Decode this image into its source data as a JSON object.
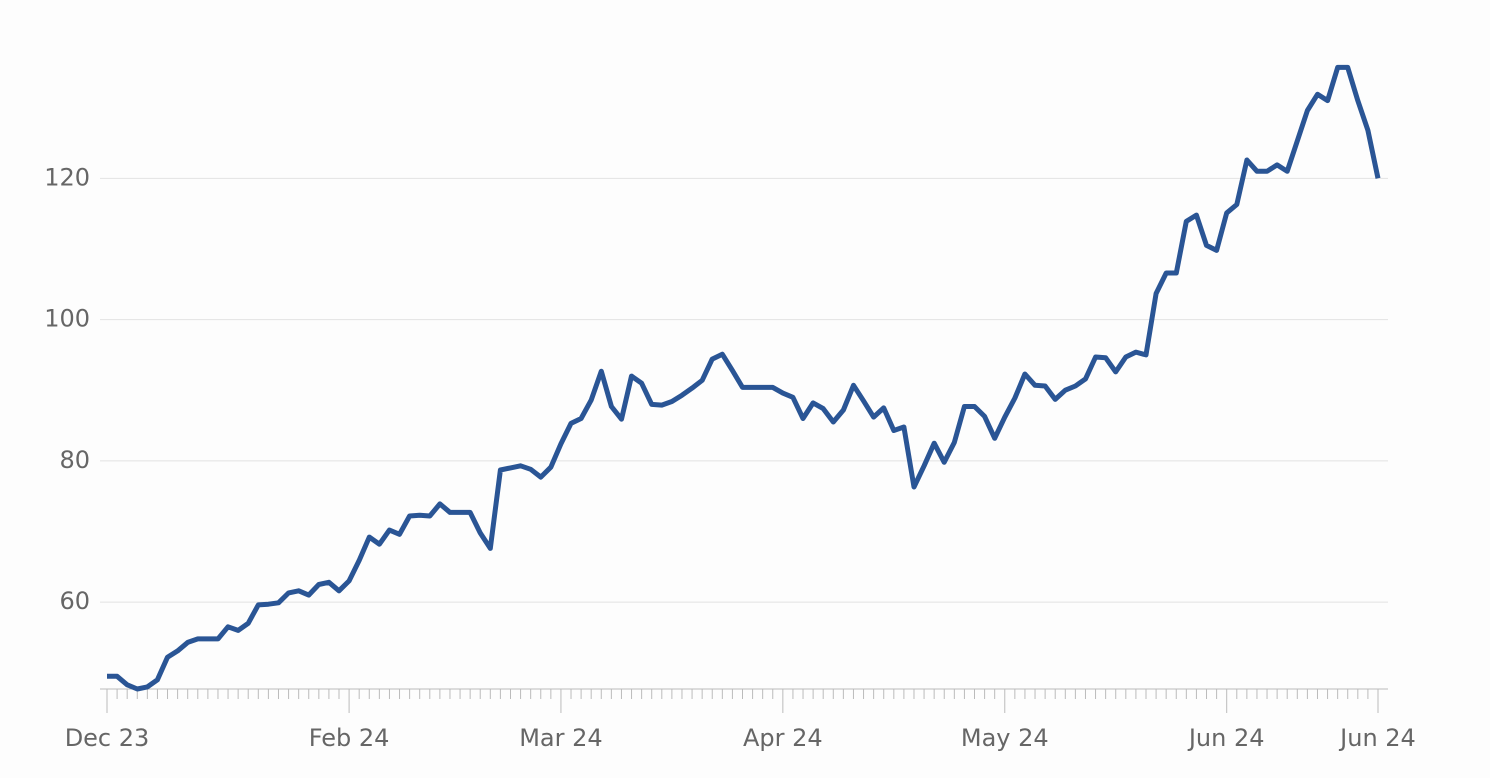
{
  "chart_data": {
    "type": "line",
    "categories": [
      "Dec 23",
      null,
      null,
      null,
      null,
      null,
      null,
      null,
      null,
      null,
      null,
      null,
      null,
      null,
      null,
      null,
      null,
      null,
      null,
      null,
      null,
      null,
      null,
      null,
      "Feb 24",
      null,
      null,
      null,
      null,
      null,
      null,
      null,
      null,
      null,
      null,
      null,
      null,
      null,
      null,
      null,
      null,
      null,
      null,
      null,
      null,
      "Mar 24",
      null,
      null,
      null,
      null,
      null,
      null,
      null,
      null,
      null,
      null,
      null,
      null,
      null,
      null,
      null,
      null,
      null,
      null,
      null,
      null,
      null,
      "Apr 24",
      null,
      null,
      null,
      null,
      null,
      null,
      null,
      null,
      null,
      null,
      null,
      null,
      null,
      null,
      null,
      null,
      null,
      null,
      null,
      null,
      null,
      "May 24",
      null,
      null,
      null,
      null,
      null,
      null,
      null,
      null,
      null,
      null,
      null,
      null,
      null,
      null,
      null,
      null,
      null,
      null,
      null,
      null,
      null,
      "Jun 24",
      null,
      null,
      null,
      null,
      null,
      null,
      null,
      null,
      null,
      null,
      null,
      null,
      null,
      null,
      "Jun 24"
    ],
    "values": [
      49.5,
      49.5,
      48.3,
      47.7,
      48.0,
      49.0,
      52.2,
      53.1,
      54.3,
      54.8,
      54.8,
      54.8,
      56.5,
      56.0,
      57.0,
      59.6,
      59.7,
      59.9,
      61.3,
      61.6,
      61.0,
      62.5,
      62.8,
      61.6,
      63.0,
      65.9,
      69.2,
      68.2,
      70.2,
      69.6,
      72.2,
      72.3,
      72.2,
      73.9,
      72.7,
      72.7,
      72.7,
      69.8,
      67.6,
      78.7,
      79.0,
      79.3,
      78.8,
      77.7,
      79.1,
      82.4,
      85.3,
      86.0,
      88.6,
      92.7,
      87.7,
      85.9,
      92.0,
      91.0,
      88.0,
      87.9,
      88.4,
      89.3,
      90.3,
      91.4,
      94.4,
      95.1,
      92.8,
      90.4,
      90.4,
      90.4,
      90.4,
      89.6,
      89.0,
      86.0,
      88.2,
      87.4,
      85.5,
      87.2,
      90.7,
      88.5,
      86.2,
      87.5,
      84.3,
      84.8,
      76.3,
      79.3,
      82.5,
      79.8,
      82.6,
      87.7,
      87.7,
      86.3,
      83.2,
      86.2,
      88.9,
      92.3,
      90.7,
      90.6,
      88.7,
      90.0,
      90.6,
      91.6,
      94.7,
      94.6,
      92.6,
      94.7,
      95.4,
      95.0,
      103.7,
      106.6,
      106.6,
      113.9,
      114.8,
      110.5,
      109.8,
      115.1,
      116.3,
      122.6,
      121.0,
      121.0,
      121.9,
      121.0,
      125.3,
      129.6,
      131.9,
      131.0,
      135.7,
      135.7,
      131.0,
      126.8,
      120.0
    ],
    "color": "#2a5595",
    "ylim": [
      47.7,
      141
    ],
    "yticks": [
      60,
      80,
      100,
      120
    ],
    "grid": true
  }
}
